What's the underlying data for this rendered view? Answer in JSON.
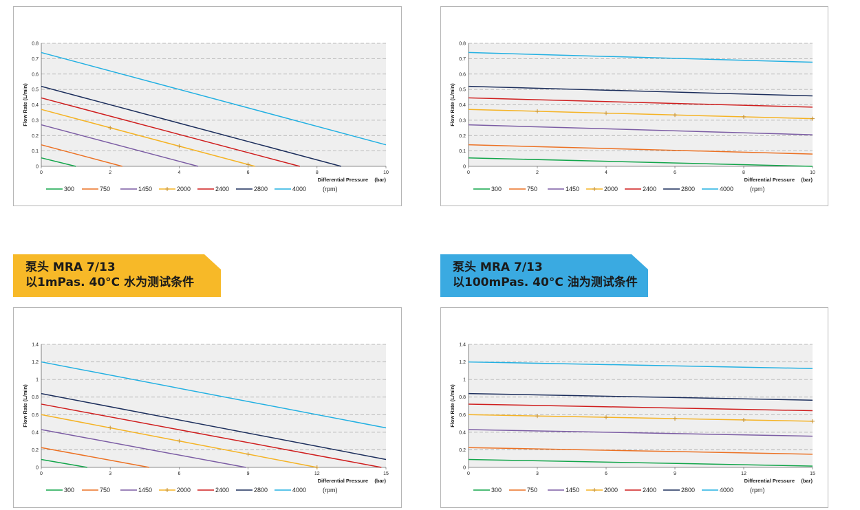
{
  "banners": [
    {
      "line1": "泵头 MRA 7/13",
      "line2": "以1mPas. 40°C 水为测试条件",
      "color": "#f7b928"
    },
    {
      "line1": "泵头 MRA 7/13",
      "line2": "以100mPas. 40°C 油为测试条件",
      "color": "#3aaae1"
    }
  ],
  "chart_data": [
    {
      "type": "line",
      "xlabel": "Differential Pressure",
      "xunit": "(bar)",
      "ylabel": "Flow Rate (L/min)",
      "unit_label": "(rpm)",
      "xlim": [
        0,
        10
      ],
      "ylim": [
        0,
        0.8
      ],
      "xticks": [
        "0",
        "2",
        "4",
        "6",
        "8",
        "10"
      ],
      "yticks": [
        "0",
        "0.1",
        "0.2",
        "0.3",
        "0.4",
        "0.5",
        "0.6",
        "0.7",
        "0.8"
      ],
      "series": [
        {
          "name": "300",
          "color": "#12a54a",
          "x": [
            0,
            1.0
          ],
          "y": [
            0.055,
            0
          ]
        },
        {
          "name": "750",
          "color": "#ec7123",
          "x": [
            0,
            2.35
          ],
          "y": [
            0.14,
            0
          ]
        },
        {
          "name": "1450",
          "color": "#7b5ca4",
          "x": [
            0,
            4.55
          ],
          "y": [
            0.27,
            0
          ]
        },
        {
          "name": "2000",
          "color": "#f5b324",
          "x": [
            0,
            6.2
          ],
          "y": [
            0.37,
            0
          ],
          "markers_x": [
            2,
            4,
            6
          ]
        },
        {
          "name": "2400",
          "color": "#cf1d1d",
          "x": [
            0,
            7.5
          ],
          "y": [
            0.445,
            0
          ]
        },
        {
          "name": "2800",
          "color": "#1c2e5c",
          "x": [
            0,
            8.7
          ],
          "y": [
            0.52,
            0
          ]
        },
        {
          "name": "4000",
          "color": "#22b0e2",
          "x": [
            0,
            10
          ],
          "y": [
            0.74,
            0.14
          ]
        }
      ]
    },
    {
      "type": "line",
      "xlabel": "Differential Pressure",
      "xunit": "(bar)",
      "ylabel": "Flow Rate (L/min)",
      "unit_label": "(rpm)",
      "xlim": [
        0,
        10
      ],
      "ylim": [
        0,
        0.8
      ],
      "xticks": [
        "0",
        "2",
        "4",
        "6",
        "8",
        "10"
      ],
      "yticks": [
        "0",
        "0.1",
        "0.2",
        "0.3",
        "0.4",
        "0.5",
        "0.6",
        "0.7",
        "0.8"
      ],
      "series": [
        {
          "name": "300",
          "color": "#12a54a",
          "x": [
            0,
            10
          ],
          "y": [
            0.055,
            0
          ]
        },
        {
          "name": "750",
          "color": "#ec7123",
          "x": [
            0,
            10
          ],
          "y": [
            0.14,
            0.08
          ]
        },
        {
          "name": "1450",
          "color": "#7b5ca4",
          "x": [
            0,
            10
          ],
          "y": [
            0.27,
            0.205
          ]
        },
        {
          "name": "2000",
          "color": "#f5b324",
          "x": [
            0,
            10
          ],
          "y": [
            0.37,
            0.31
          ],
          "markers_x": [
            2,
            4,
            6,
            8,
            10
          ]
        },
        {
          "name": "2400",
          "color": "#cf1d1d",
          "x": [
            0,
            10
          ],
          "y": [
            0.445,
            0.385
          ]
        },
        {
          "name": "2800",
          "color": "#1c2e5c",
          "x": [
            0,
            10
          ],
          "y": [
            0.52,
            0.458
          ]
        },
        {
          "name": "4000",
          "color": "#22b0e2",
          "x": [
            0,
            10
          ],
          "y": [
            0.74,
            0.677
          ]
        }
      ]
    },
    {
      "type": "line",
      "xlabel": "Differential Pressure",
      "xunit": "(bar)",
      "ylabel": "Flow Rate (L/min)",
      "unit_label": "(rpm)",
      "xlim": [
        0,
        15
      ],
      "ylim": [
        0,
        1.4
      ],
      "xticks": [
        "0",
        "3",
        "6",
        "9",
        "12",
        "15"
      ],
      "yticks": [
        "0",
        "0.2",
        "0.4",
        "0.6",
        "0.8",
        "1",
        "1.2",
        "1.4"
      ],
      "series": [
        {
          "name": "300",
          "color": "#12a54a",
          "x": [
            0,
            2.0
          ],
          "y": [
            0.09,
            0
          ]
        },
        {
          "name": "750",
          "color": "#ec7123",
          "x": [
            0,
            4.7
          ],
          "y": [
            0.225,
            0
          ]
        },
        {
          "name": "1450",
          "color": "#7b5ca4",
          "x": [
            0,
            8.9
          ],
          "y": [
            0.43,
            0
          ]
        },
        {
          "name": "2000",
          "color": "#f5b324",
          "x": [
            0,
            12.0
          ],
          "y": [
            0.6,
            0
          ],
          "markers_x": [
            3,
            6,
            9,
            12
          ]
        },
        {
          "name": "2400",
          "color": "#cf1d1d",
          "x": [
            0,
            14.8
          ],
          "y": [
            0.72,
            0
          ]
        },
        {
          "name": "2800",
          "color": "#1c2e5c",
          "x": [
            0,
            15
          ],
          "y": [
            0.84,
            0.09
          ]
        },
        {
          "name": "4000",
          "color": "#22b0e2",
          "x": [
            0,
            15
          ],
          "y": [
            1.2,
            0.45
          ]
        }
      ]
    },
    {
      "type": "line",
      "xlabel": "Differential Pressure",
      "xunit": "(bar)",
      "ylabel": "Flow Rate (L/min)",
      "unit_label": "(rpm)",
      "xlim": [
        0,
        15
      ],
      "ylim": [
        0,
        1.4
      ],
      "xticks": [
        "0",
        "3",
        "6",
        "9",
        "12",
        "15"
      ],
      "yticks": [
        "0",
        "0.2",
        "0.4",
        "0.6",
        "0.8",
        "1",
        "1.2",
        "1.4"
      ],
      "series": [
        {
          "name": "300",
          "color": "#12a54a",
          "x": [
            0,
            15
          ],
          "y": [
            0.09,
            0.015
          ]
        },
        {
          "name": "750",
          "color": "#ec7123",
          "x": [
            0,
            15
          ],
          "y": [
            0.225,
            0.15
          ]
        },
        {
          "name": "1450",
          "color": "#7b5ca4",
          "x": [
            0,
            15
          ],
          "y": [
            0.43,
            0.355
          ]
        },
        {
          "name": "2000",
          "color": "#f5b324",
          "x": [
            0,
            15
          ],
          "y": [
            0.6,
            0.525
          ],
          "markers_x": [
            3,
            6,
            9,
            12,
            15
          ]
        },
        {
          "name": "2400",
          "color": "#cf1d1d",
          "x": [
            0,
            15
          ],
          "y": [
            0.72,
            0.645
          ]
        },
        {
          "name": "2800",
          "color": "#1c2e5c",
          "x": [
            0,
            15
          ],
          "y": [
            0.84,
            0.765
          ]
        },
        {
          "name": "4000",
          "color": "#22b0e2",
          "x": [
            0,
            15
          ],
          "y": [
            1.2,
            1.125
          ]
        }
      ]
    }
  ]
}
